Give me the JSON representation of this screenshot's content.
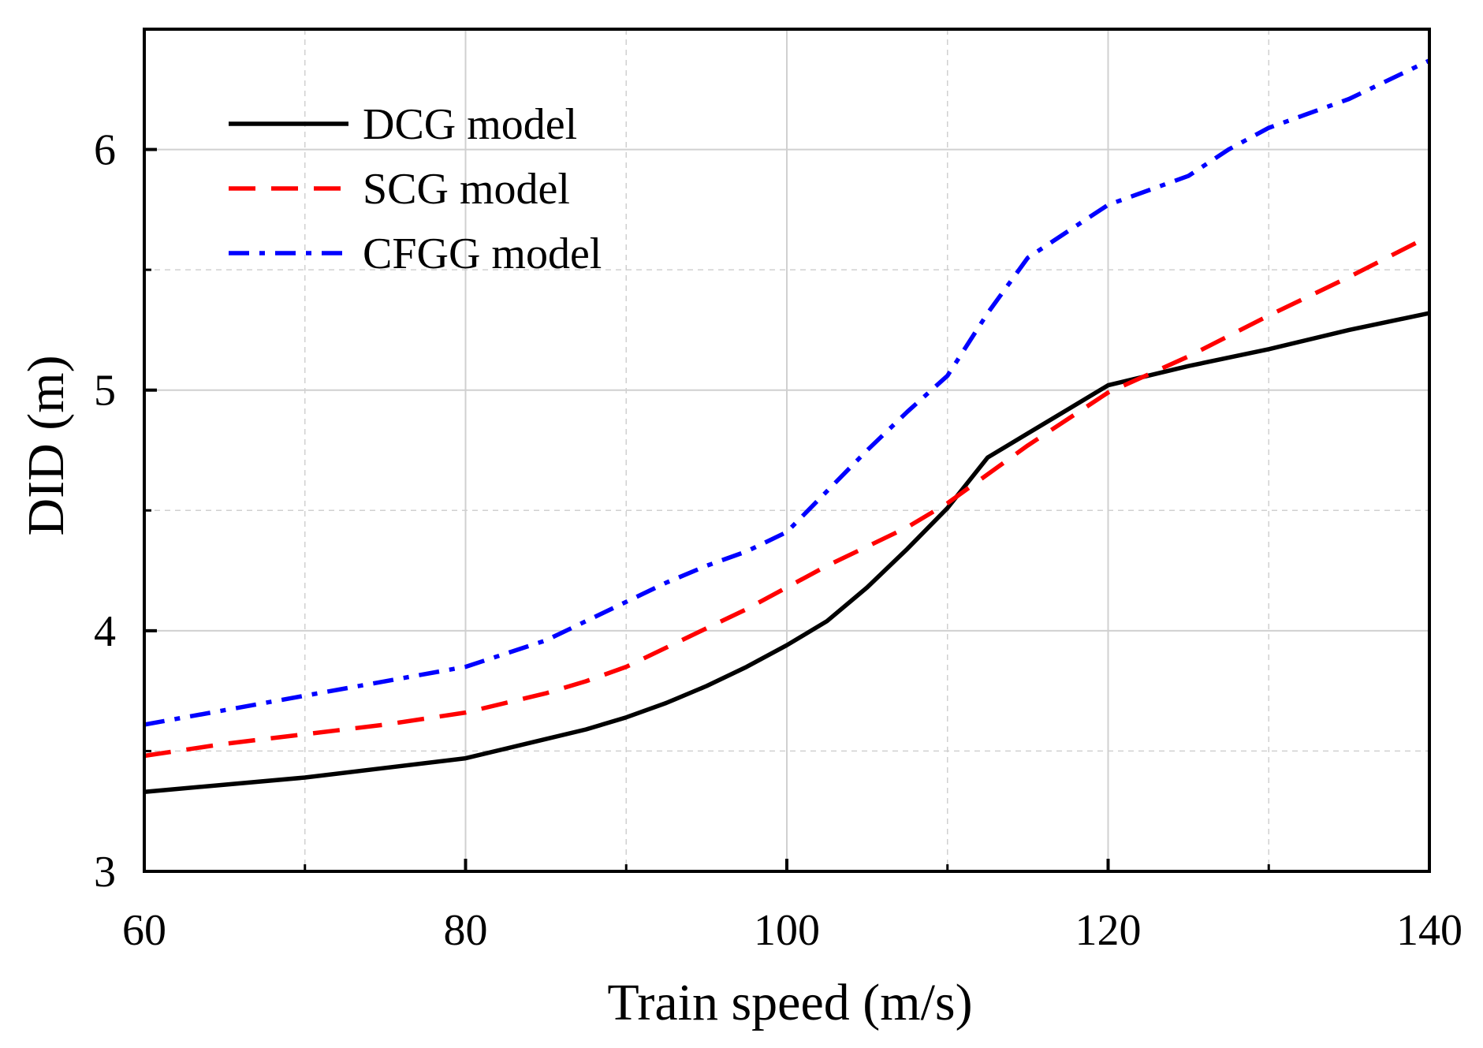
{
  "chart_data": {
    "type": "line",
    "xlabel": "Train speed (m/s)",
    "ylabel": "DID (m)",
    "xlim": [
      60,
      140
    ],
    "ylim": [
      3,
      6.5
    ],
    "x_ticks": [
      60,
      80,
      100,
      120,
      140
    ],
    "x_tick_labels": [
      "60",
      "80",
      "100",
      "120",
      "140"
    ],
    "x_minor_ticks": [
      70,
      90,
      110,
      130
    ],
    "y_ticks": [
      3,
      4,
      5,
      6
    ],
    "y_tick_labels": [
      "3",
      "4",
      "5",
      "6"
    ],
    "y_minor_ticks": [
      3.5,
      4.5,
      5.5
    ],
    "grid": true,
    "legend_position": "top-left",
    "series": [
      {
        "name": "DCG model",
        "color": "#000000",
        "style": "solid",
        "x": [
          60,
          65,
          70,
          75,
          80,
          85,
          87.5,
          90,
          92.5,
          95,
          97.5,
          100,
          102.5,
          105,
          107.5,
          110,
          112.5,
          115,
          117.5,
          120,
          125,
          130,
          135,
          140
        ],
        "y": [
          3.33,
          3.36,
          3.39,
          3.43,
          3.47,
          3.55,
          3.59,
          3.64,
          3.7,
          3.77,
          3.85,
          3.94,
          4.04,
          4.18,
          4.34,
          4.51,
          4.72,
          4.82,
          4.92,
          5.02,
          5.1,
          5.17,
          5.25,
          5.32
        ]
      },
      {
        "name": "SCG model",
        "color": "#ff0000",
        "style": "dashed",
        "x": [
          60,
          65,
          70,
          75,
          80,
          85,
          87.5,
          90,
          92.5,
          95,
          97.5,
          100,
          102.5,
          105,
          107.5,
          110,
          112.5,
          115,
          117.5,
          120,
          125,
          130,
          135,
          140
        ],
        "y": [
          3.48,
          3.53,
          3.57,
          3.61,
          3.66,
          3.74,
          3.79,
          3.85,
          3.93,
          4.01,
          4.09,
          4.18,
          4.27,
          4.35,
          4.43,
          4.53,
          4.65,
          4.77,
          4.88,
          4.99,
          5.14,
          5.31,
          5.47,
          5.64
        ]
      },
      {
        "name": "CFGG model",
        "color": "#0000ff",
        "style": "dashdot",
        "x": [
          60,
          65,
          70,
          75,
          80,
          85,
          87.5,
          90,
          92.5,
          95,
          97.5,
          100,
          102.5,
          105,
          107.5,
          110,
          112.5,
          115,
          117.5,
          120,
          125,
          127.5,
          130,
          135,
          140
        ],
        "y": [
          3.61,
          3.67,
          3.73,
          3.79,
          3.85,
          3.96,
          4.04,
          4.12,
          4.2,
          4.27,
          4.33,
          4.41,
          4.58,
          4.75,
          4.91,
          5.06,
          5.32,
          5.55,
          5.66,
          5.77,
          5.89,
          6.0,
          6.09,
          6.21,
          6.37
        ]
      }
    ]
  }
}
